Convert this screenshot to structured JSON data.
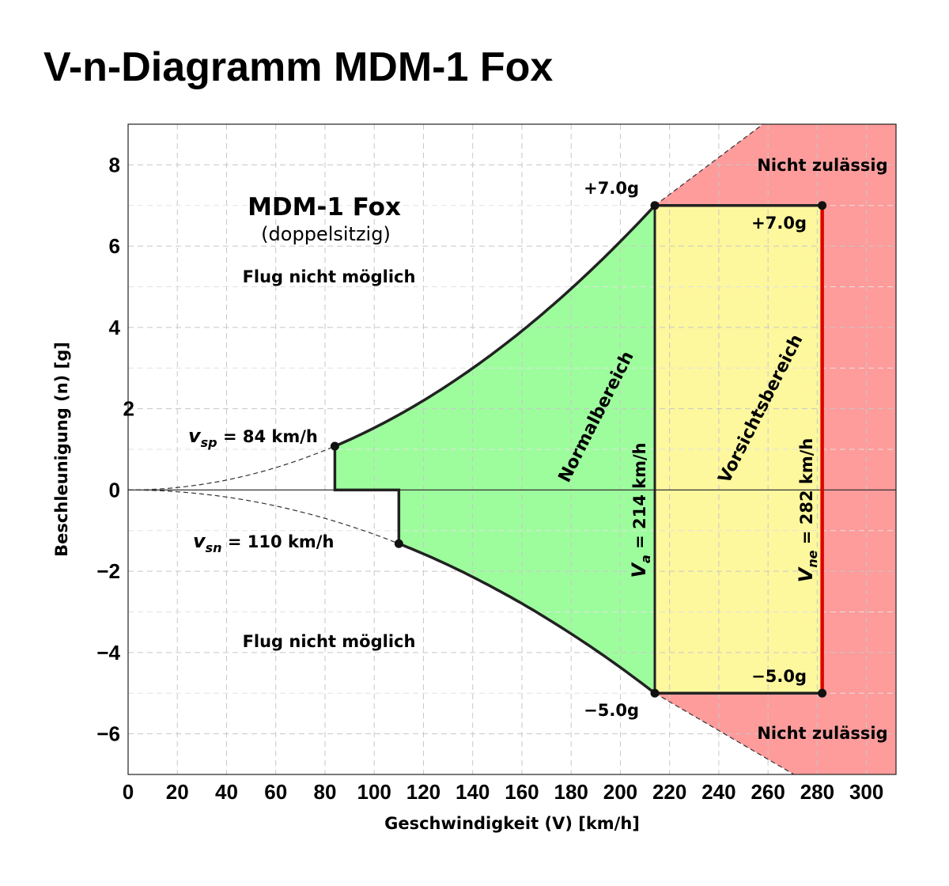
{
  "title": "V-n-Diagramm MDM-1 Fox",
  "chart_data": {
    "type": "area",
    "title": "V-n-Diagramm MDM-1 Fox",
    "xlabel": "Geschwindigkeit (V) [km/h]",
    "ylabel": "Beschleunigung (n) [g]",
    "xlim": [
      0,
      312
    ],
    "ylim": [
      -7,
      9
    ],
    "xticks": [
      "0",
      "20",
      "40",
      "60",
      "80",
      "100",
      "120",
      "140",
      "160",
      "180",
      "200",
      "220",
      "240",
      "260",
      "280",
      "300"
    ],
    "yticks": [
      {
        "value": 8,
        "label": "8"
      },
      {
        "value": 6,
        "label": "6"
      },
      {
        "value": 4,
        "label": "4"
      },
      {
        "value": 2,
        "label": "2"
      },
      {
        "value": 0,
        "label": "0"
      },
      {
        "value": -2,
        "label": "−2"
      },
      {
        "value": -4,
        "label": "−4"
      },
      {
        "value": -6,
        "label": "−6"
      }
    ],
    "grid": true,
    "aircraft": "MDM-1 Fox",
    "variant": "(doppelsitzig)",
    "v_sp": 84,
    "v_sn": 110,
    "v_a": 214,
    "v_ne": 282,
    "n_pos": 7.0,
    "n_neg": -5.0,
    "n_pos_curve_at_vsp": 1.0,
    "n_neg_curve_at_vsn": -1.0,
    "regions": {
      "normal": "Normalbereich",
      "caution": "Vorsichtsbereich",
      "not_allowed": "Nicht zulässig",
      "no_flight": "Flug nicht möglich"
    },
    "point_labels": {
      "pos_left": "+7.0g",
      "pos_right": "+7.0g",
      "neg_left": "−5.0g",
      "neg_right": "−5.0g"
    },
    "speed_labels": {
      "vsp_sub": "sp",
      "vsp_text": "= 84  km/h",
      "vsn_sub": "sn",
      "vsn_text": "= 110  km/h",
      "va_sub": "a",
      "va_text": "= 214 km/h",
      "vne_sub": "ne",
      "vne_text": "= 282 km/h"
    },
    "colors": {
      "normal": "#9dfd9d",
      "caution": "#fdf79e",
      "not_allowed": "#fe9b9b",
      "vne_line": "#e00000"
    }
  }
}
